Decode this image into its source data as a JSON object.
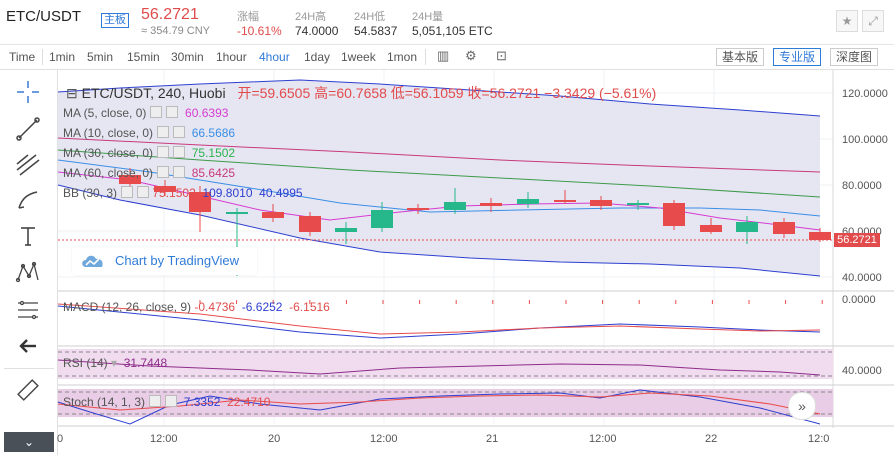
{
  "header": {
    "pair": "ETC/USDT",
    "badge": "主板",
    "price": "56.2721",
    "cny": "≈ 354.79 CNY",
    "stats": [
      {
        "label": "涨幅",
        "value": "-10.61%"
      },
      {
        "label": "24H高",
        "value": "74.0000"
      },
      {
        "label": "24H低",
        "value": "54.5837"
      },
      {
        "label": "24H量",
        "value": "5,051,105 ETC"
      }
    ],
    "icons": [
      "star-icon",
      "fullscreen-icon"
    ]
  },
  "toolbar": {
    "timeframes": [
      "Time",
      "1min",
      "5min",
      "15min",
      "30min",
      "1hour",
      "4hour",
      "1day",
      "1week",
      "1mon"
    ],
    "active": "4hour",
    "views": [
      "基本版",
      "专业版",
      "深度图"
    ],
    "active_view": "专业版"
  },
  "legend": {
    "title": "ETC/USDT, 240, Huobi",
    "ohlc": "开=59.6505  高=60.7658  低=56.1059  收=56.2721  −3.3429 (−5.61%)",
    "ma": [
      {
        "name": "MA (5, close, 0)",
        "value": "60.6393",
        "color": "#d63bd0"
      },
      {
        "name": "MA (10, close, 0)",
        "value": "66.5686",
        "color": "#3a8ee6"
      },
      {
        "name": "MA (30, close, 0)",
        "value": "75.1502",
        "color": "#2bb34b"
      },
      {
        "name": "MA (60, close, 0)",
        "value": "85.6425",
        "color": "#c73a7b"
      }
    ],
    "bb": {
      "name": "BB (30, 3)",
      "v1": "75.1502",
      "v2": "109.8010",
      "v3": "40.4995"
    },
    "macd": {
      "name": "MACD (12, 26, close, 9)",
      "v1": "-0.4736",
      "v2": "-6.6252",
      "v3": "-6.1516"
    },
    "rsi": {
      "name": "RSI (14)",
      "value": "31.7448"
    },
    "stoch": {
      "name": "Stoch (14, 1, 3)",
      "v1": "7.3352",
      "v2": "22.4710"
    }
  },
  "logo_text": "Chart by TradingView",
  "price_axis": [
    "120.0000",
    "100.0000",
    "80.0000",
    "60.0000",
    "40.0000"
  ],
  "macd_axis": [
    "0.0000"
  ],
  "rsi_axis": [
    "40.0000"
  ],
  "current_price_tag": "56.2721",
  "time_axis": [
    "0",
    "12:00",
    "20",
    "12:00",
    "21",
    "12:00",
    "22",
    "12:0"
  ],
  "colors": {
    "up": "#26b78a",
    "down": "#e84b4b",
    "accent": "#2f7bd8"
  }
}
